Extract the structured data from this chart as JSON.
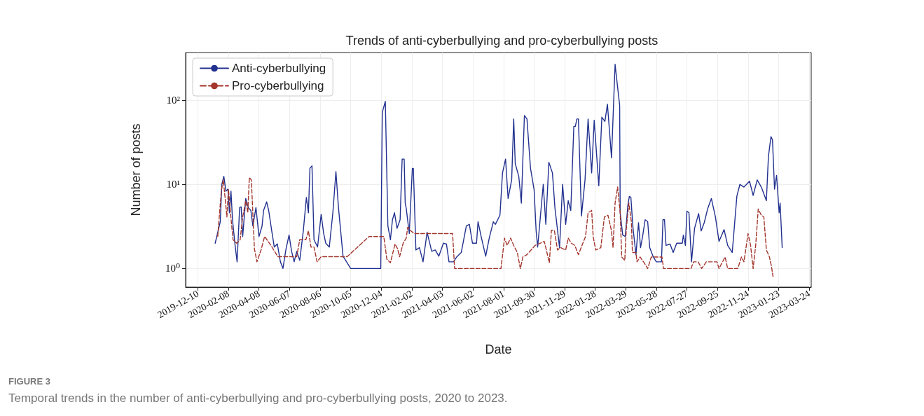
{
  "chart_data": {
    "type": "line",
    "title": "Trends of anti-cyberbullying and pro-cyberbullying posts",
    "xlabel": "Date",
    "ylabel": "Number of posts",
    "annotations": [
      "FIGURE 3",
      "Temporal trends in the number of anti-cyberbullying and pro-cyberbullying posts, 2020 to 2023."
    ],
    "log": "y",
    "grid": true,
    "legend": "top left",
    "xlim": [
      "2019-11-16",
      "2023-03-28"
    ],
    "xticks": [
      "2019-12-10",
      "2020-02-08",
      "2020-04-08",
      "2020-06-07",
      "2020-08-06",
      "2020-10-05",
      "2020-12-04",
      "2021-02-02",
      "2021-04-03",
      "2021-06-02",
      "2021-08-01",
      "2021-09-30",
      "2021-11-29",
      "2022-01-28",
      "2022-03-29",
      "2022-05-28",
      "2022-07-27",
      "2022-09-25",
      "2022-11-24",
      "2023-01-23",
      "2023-03-24"
    ],
    "ylim": [
      0.6,
      370
    ],
    "yticks": [
      {
        "value": 1,
        "label": "10⁰"
      },
      {
        "value": 10,
        "label": "10¹"
      },
      {
        "value": 100,
        "label": "10²"
      }
    ],
    "series": [
      {
        "name": "Anti-cyberbullying",
        "color": "#22318f",
        "line_style": "solid",
        "x": [
          "2020-01-13",
          "2020-01-23",
          "2020-01-26",
          "2020-01-30",
          "2020-02-03",
          "2020-02-07",
          "2020-02-10",
          "2020-02-13",
          "2020-02-16",
          "2020-02-21",
          "2020-02-25",
          "2020-03-01",
          "2020-03-04",
          "2020-03-07",
          "2020-03-13",
          "2020-03-18",
          "2020-03-23",
          "2020-03-27",
          "2020-04-02",
          "2020-04-08",
          "2020-04-14",
          "2020-04-17",
          "2020-04-23",
          "2020-04-27",
          "2020-05-03",
          "2020-05-08",
          "2020-05-14",
          "2020-05-20",
          "2020-05-25",
          "2020-05-31",
          "2020-06-06",
          "2020-06-11",
          "2020-06-16",
          "2020-06-21",
          "2020-06-27",
          "2020-07-04",
          "2020-07-10",
          "2020-07-14",
          "2020-07-17",
          "2020-07-21",
          "2020-07-25",
          "2020-08-01",
          "2020-08-08",
          "2020-08-13",
          "2020-08-17",
          "2020-08-24",
          "2020-08-31",
          "2020-09-06",
          "2020-09-11",
          "2020-09-20",
          "2020-10-05",
          "2020-12-03",
          "2020-12-06",
          "2020-12-12",
          "2020-12-17",
          "2020-12-22",
          "2020-12-26",
          "2020-12-30",
          "2021-01-04",
          "2021-01-10",
          "2021-01-14",
          "2021-01-18",
          "2021-01-20",
          "2021-01-22",
          "2021-01-28",
          "2021-02-03",
          "2021-02-05",
          "2021-02-10",
          "2021-02-17",
          "2021-02-24",
          "2021-03-04",
          "2021-03-13",
          "2021-03-20",
          "2021-03-27",
          "2021-04-05",
          "2021-04-11",
          "2021-04-16",
          "2021-04-25",
          "2021-05-01",
          "2021-05-10",
          "2021-05-20",
          "2021-05-26",
          "2021-06-01",
          "2021-06-09",
          "2021-06-12",
          "2021-06-18",
          "2021-06-27",
          "2021-07-04",
          "2021-07-12",
          "2021-07-16",
          "2021-07-25",
          "2021-07-30",
          "2021-08-05",
          "2021-08-10",
          "2021-08-17",
          "2021-08-21",
          "2021-08-24",
          "2021-08-31",
          "2021-09-05",
          "2021-09-11",
          "2021-09-16",
          "2021-09-23",
          "2021-09-30",
          "2021-10-04",
          "2021-10-07",
          "2021-10-18",
          "2021-10-23",
          "2021-10-29",
          "2021-11-05",
          "2021-11-10",
          "2021-11-19",
          "2021-11-25",
          "2021-12-01",
          "2021-12-06",
          "2021-12-11",
          "2021-12-17",
          "2021-12-20",
          "2021-12-23",
          "2021-12-26",
          "2022-01-01",
          "2022-01-08",
          "2022-01-14",
          "2022-01-21",
          "2022-01-26",
          "2022-02-04",
          "2022-02-10",
          "2022-02-16",
          "2022-02-21",
          "2022-03-01",
          "2022-03-08",
          "2022-03-12",
          "2022-03-17",
          "2022-03-18",
          "2022-03-23",
          "2022-03-28",
          "2022-04-02",
          "2022-04-05",
          "2022-04-08",
          "2022-04-12",
          "2022-04-18",
          "2022-04-23",
          "2022-04-27",
          "2022-05-01",
          "2022-05-06",
          "2022-05-11",
          "2022-05-15",
          "2022-05-22",
          "2022-05-28",
          "2022-06-07",
          "2022-06-10",
          "2022-06-13",
          "2022-06-16",
          "2022-06-24",
          "2022-06-30",
          "2022-07-07",
          "2022-07-18",
          "2022-07-20",
          "2022-07-24",
          "2022-07-27",
          "2022-07-31",
          "2022-08-05",
          "2022-08-11",
          "2022-08-19",
          "2022-08-24",
          "2022-08-30",
          "2022-09-06",
          "2022-09-13",
          "2022-09-21",
          "2022-09-28",
          "2022-10-08",
          "2022-10-15",
          "2022-10-24",
          "2022-11-02",
          "2022-11-08",
          "2022-11-16",
          "2022-11-27",
          "2022-12-04",
          "2022-12-12",
          "2022-12-20",
          "2022-12-30",
          "2023-01-03",
          "2023-01-08",
          "2023-01-11",
          "2023-01-15",
          "2023-01-19",
          "2023-01-24",
          "2023-01-26",
          "2023-01-30"
        ],
        "values": [
          2.0,
          3.6,
          10,
          12.5,
          8.3,
          8.8,
          4.6,
          8.3,
          3.8,
          1.9,
          1.2,
          5.3,
          5.4,
          2.4,
          6.8,
          5.3,
          4.9,
          3.2,
          5.3,
          2.4,
          3.2,
          4.9,
          6.2,
          4.9,
          2.8,
          1.8,
          1.96,
          1.2,
          1.0,
          1.7,
          2.5,
          1.6,
          1.2,
          1.6,
          1.25,
          2.8,
          7.0,
          4.6,
          15.6,
          16.6,
          2.2,
          1.8,
          4.4,
          2.6,
          2.0,
          1.8,
          4.6,
          14.2,
          5.3,
          1.4,
          1.0,
          1.0,
          72,
          97,
          3.2,
          2.2,
          3.8,
          4.6,
          3.0,
          3.8,
          20,
          20,
          6.0,
          5.2,
          2.6,
          15.5,
          15.5,
          1.66,
          1.77,
          1.2,
          2.7,
          1.6,
          1.66,
          1.4,
          2.0,
          1.95,
          1.2,
          1.2,
          1.37,
          1.55,
          3.2,
          3.35,
          2.0,
          2.0,
          3.6,
          2.4,
          1.4,
          2.3,
          3.6,
          3.35,
          4.3,
          13.7,
          20,
          6.8,
          11.3,
          60,
          17.7,
          12.4,
          6.0,
          66,
          60,
          15.5,
          8.7,
          2.8,
          1.8,
          10,
          3.35,
          18.3,
          13.7,
          5.2,
          1.77,
          10,
          3.35,
          6.4,
          4.9,
          49,
          49,
          60,
          60,
          4.2,
          11.3,
          60,
          13.7,
          58,
          9.6,
          63,
          56,
          90,
          20.7,
          268,
          161,
          87,
          4.6,
          2.5,
          2.4,
          5.6,
          7.2,
          7.0,
          3.1,
          1.46,
          3.5,
          1.77,
          2.4,
          3.8,
          3.6,
          1.77,
          1.37,
          1.2,
          1.2,
          3.8,
          3.8,
          1.88,
          1.95,
          1.55,
          2.0,
          2.0,
          2.5,
          1.88,
          4.8,
          4.6,
          1.2,
          3.0,
          4.5,
          2.8,
          3.5,
          5.2,
          6.8,
          4.1,
          2.1,
          2.9,
          1.88,
          1.55,
          7.2,
          10,
          9.3,
          10.9,
          7.4,
          11.3,
          9.3,
          6.4,
          21.5,
          37,
          33.6,
          8.8,
          12.8,
          4.6,
          6.0,
          1.77
        ]
      },
      {
        "name": "Pro-cyberbullying",
        "color": "#a3352c",
        "line_style": "dashed",
        "x": [
          "2020-01-18",
          "2020-01-25",
          "2020-01-29",
          "2020-02-02",
          "2020-02-05",
          "2020-02-08",
          "2020-02-12",
          "2020-02-17",
          "2020-02-24",
          "2020-03-02",
          "2020-03-07",
          "2020-03-13",
          "2020-03-17",
          "2020-03-20",
          "2020-03-24",
          "2020-03-30",
          "2020-04-04",
          "2020-04-12",
          "2020-04-19",
          "2020-05-01",
          "2020-05-15",
          "2020-06-21",
          "2020-06-27",
          "2020-07-09",
          "2020-07-14",
          "2020-07-19",
          "2020-07-25",
          "2020-07-31",
          "2020-08-08",
          "2020-09-28",
          "2020-11-10",
          "2020-12-09",
          "2020-12-15",
          "2020-12-22",
          "2020-12-31",
          "2021-01-05",
          "2021-01-09",
          "2021-01-16",
          "2021-01-22",
          "2021-01-25",
          "2021-01-31",
          "2021-02-07",
          "2021-03-04",
          "2021-04-23",
          "2021-04-27",
          "2021-07-27",
          "2021-08-03",
          "2021-08-08",
          "2021-08-15",
          "2021-08-21",
          "2021-08-28",
          "2021-09-03",
          "2021-09-08",
          "2021-09-16",
          "2021-10-02",
          "2021-10-20",
          "2021-10-30",
          "2021-11-03",
          "2021-11-09",
          "2021-11-15",
          "2021-11-21",
          "2021-12-01",
          "2021-12-06",
          "2021-12-12",
          "2021-12-19",
          "2021-12-26",
          "2022-01-02",
          "2022-01-09",
          "2022-01-14",
          "2022-01-21",
          "2022-01-24",
          "2022-01-29",
          "2022-02-08",
          "2022-02-15",
          "2022-02-22",
          "2022-03-01",
          "2022-03-04",
          "2022-03-08",
          "2022-03-13",
          "2022-03-18",
          "2022-03-21",
          "2022-03-27",
          "2022-03-30",
          "2022-04-04",
          "2022-04-09",
          "2022-04-11",
          "2022-04-18",
          "2022-04-20",
          "2022-04-26",
          "2022-05-04",
          "2022-05-11",
          "2022-05-18",
          "2022-06-08",
          "2022-06-11",
          "2022-08-04",
          "2022-08-09",
          "2022-08-18",
          "2022-08-25",
          "2022-09-03",
          "2022-09-24",
          "2022-09-28",
          "2022-10-05",
          "2022-10-10",
          "2022-10-15",
          "2022-11-04",
          "2022-11-11",
          "2022-11-16",
          "2022-11-24",
          "2022-11-29",
          "2022-12-04",
          "2022-12-09",
          "2022-12-14",
          "2022-12-20",
          "2022-12-25",
          "2022-12-30",
          "2023-01-05",
          "2023-01-09",
          "2023-01-12"
        ],
        "values": [
          2.4,
          8.3,
          11.3,
          6.4,
          4.1,
          8.8,
          4.6,
          2.2,
          2.0,
          2.2,
          4.1,
          6.4,
          4.6,
          12.1,
          11.3,
          1.72,
          1.2,
          1.66,
          2.4,
          1.9,
          1.38,
          1.38,
          2.2,
          2.2,
          2.8,
          1.8,
          1.8,
          1.2,
          1.38,
          1.38,
          2.4,
          2.4,
          1.29,
          1.17,
          1.96,
          1.72,
          1.38,
          2.0,
          2.3,
          3.1,
          2.8,
          2.6,
          2.6,
          2.6,
          1.0,
          1.0,
          2.3,
          1.88,
          2.3,
          1.88,
          1.55,
          1.0,
          1.37,
          1.46,
          1.88,
          2.1,
          1.17,
          2.85,
          2.8,
          1.66,
          1.77,
          1.66,
          2.3,
          2.0,
          1.88,
          1.46,
          1.88,
          2.4,
          4.6,
          4.9,
          2.4,
          1.66,
          1.77,
          4.1,
          4.3,
          2.8,
          1.77,
          6.0,
          9.3,
          4.6,
          1.37,
          1.25,
          2.95,
          6.0,
          3.6,
          1.55,
          1.55,
          1.2,
          1.37,
          1.17,
          1.0,
          1.37,
          1.37,
          1.0,
          1.0,
          1.2,
          1.2,
          1.0,
          1.2,
          1.2,
          1.0,
          1.2,
          1.37,
          1.0,
          1.0,
          1.37,
          1.2,
          2.6,
          1.88,
          1.0,
          1.88,
          5.1,
          4.3,
          4.1,
          1.66,
          1.37,
          1.06,
          0.8
        ]
      }
    ]
  }
}
